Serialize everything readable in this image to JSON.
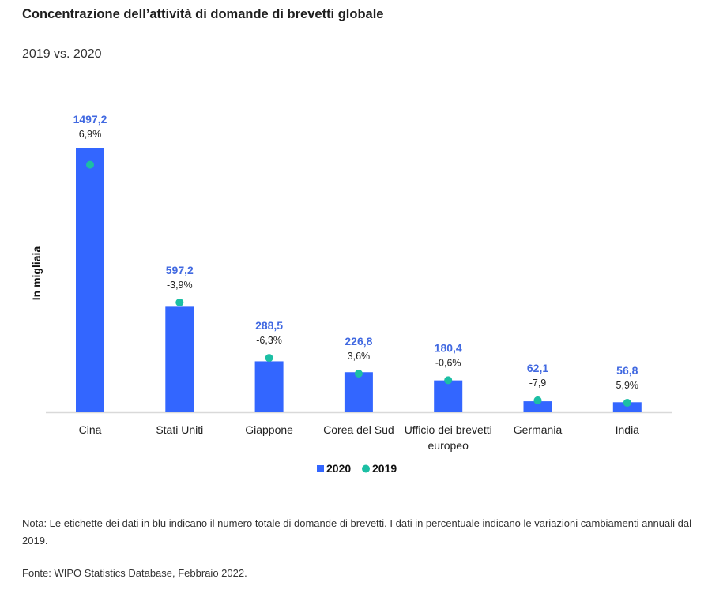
{
  "header": {
    "title": "Concentrazione dell’attività di domande di brevetti globale",
    "subtitle": "2019 vs. 2020"
  },
  "chart_data": {
    "type": "bar",
    "title": "Concentrazione dell’attività di domande di brevetti globale",
    "subtitle": "2019 vs. 2020",
    "xlabel": "",
    "ylabel": "In migliaia",
    "categories": [
      "Cina",
      "Stati Uniti",
      "Giappone",
      "Corea del Sud",
      "Ufficio dei brevetti europeo",
      "Germania",
      "India"
    ],
    "category_lines": [
      [
        "Cina"
      ],
      [
        "Stati Uniti"
      ],
      [
        "Giappone"
      ],
      [
        "Corea del Sud"
      ],
      [
        "Ufficio dei brevetti",
        "europeo"
      ],
      [
        "Germania"
      ],
      [
        "India"
      ]
    ],
    "series": [
      {
        "name": "2020",
        "kind": "bar",
        "color": "#3366ff",
        "values": [
          1497.2,
          597.2,
          288.5,
          226.8,
          180.4,
          62.1,
          56.8
        ]
      },
      {
        "name": "2019",
        "kind": "dot",
        "color": "#1cbfa4",
        "values": [
          1400.6,
          621.4,
          307.9,
          218.9,
          181.5,
          67.4,
          53.6
        ]
      }
    ],
    "value_labels": [
      "1497,2",
      "597,2",
      "288,5",
      "226,8",
      "180,4",
      "62,1",
      "56,8"
    ],
    "change_labels": [
      "6,9%",
      "-3,9%",
      "-6,3%",
      "3,6%",
      "-0,6%",
      "-7,9",
      "5,9%"
    ],
    "ylim": [
      0,
      1497.2
    ],
    "grid": false,
    "legend": {
      "position": "bottom-center",
      "items": [
        "2020",
        "2019"
      ]
    },
    "value_label_color": "#4169e1"
  },
  "footer": {
    "note": "Nota: Le etichette dei dati in blu indicano il numero totale di domande di brevetti. I dati in percentuale indicano le variazioni cambiamenti annuali dal 2019.",
    "source": "Fonte: WIPO Statistics Database, Febbraio 2022."
  }
}
